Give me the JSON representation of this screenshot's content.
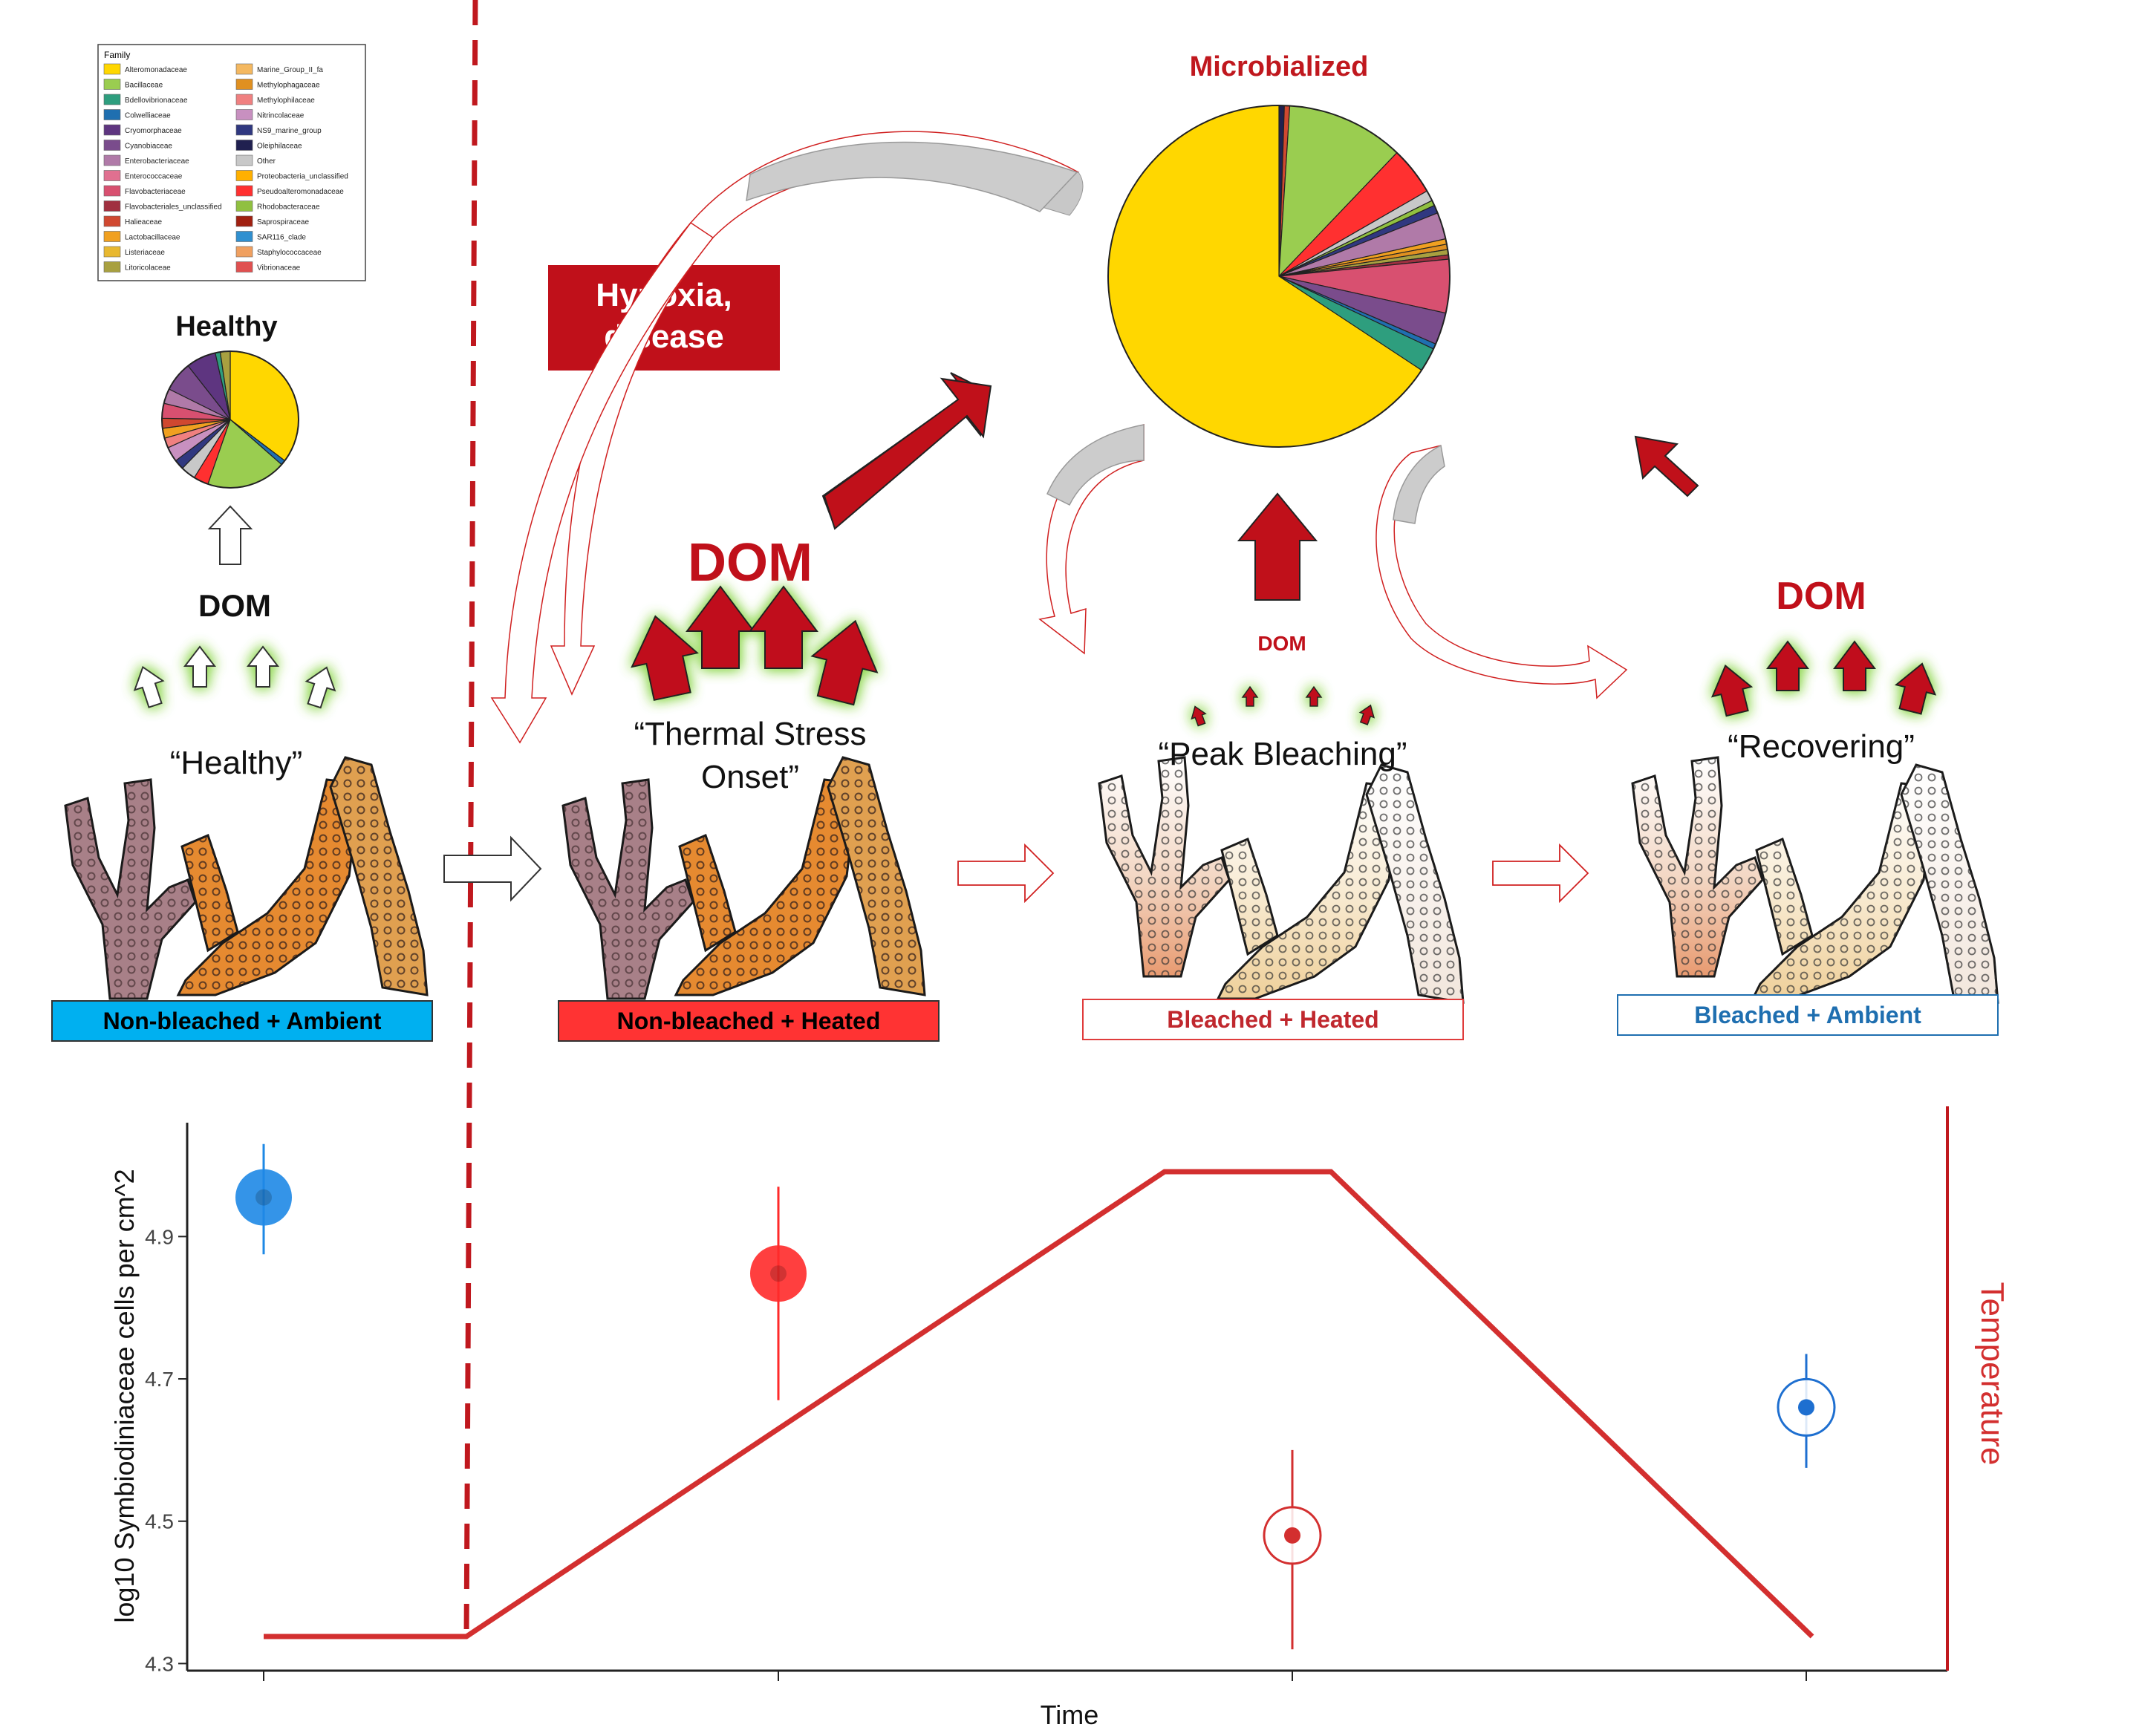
{
  "legend": {
    "title": "Family",
    "items": [
      {
        "name": "Alteromonadaceae",
        "color": "#FFD700"
      },
      {
        "name": "Bacillaceae",
        "color": "#9ACD50"
      },
      {
        "name": "Bdellovibrionaceae",
        "color": "#2E9E7E"
      },
      {
        "name": "Colwelliaceae",
        "color": "#1F6FB0"
      },
      {
        "name": "Cryomorphaceae",
        "color": "#5E3580"
      },
      {
        "name": "Cyanobiaceae",
        "color": "#7A4C8C"
      },
      {
        "name": "Enterobacteriaceae",
        "color": "#B07AA8"
      },
      {
        "name": "Enterococcaceae",
        "color": "#E07090"
      },
      {
        "name": "Flavobacteriaceae",
        "color": "#D85070"
      },
      {
        "name": "Flavobacteriales_unclassified",
        "color": "#A03040"
      },
      {
        "name": "Halieaceae",
        "color": "#D04830"
      },
      {
        "name": "Lactobacillaceae",
        "color": "#F0A020"
      },
      {
        "name": "Listeriaceae",
        "color": "#E8B830"
      },
      {
        "name": "Litoricolaceae",
        "color": "#A8A040"
      },
      {
        "name": "Marine_Group_II_fa",
        "color": "#F4B860"
      },
      {
        "name": "Methylophagaceae",
        "color": "#E09020"
      },
      {
        "name": "Methylophilaceae",
        "color": "#F08080"
      },
      {
        "name": "Nitrincolaceae",
        "color": "#C890C0"
      },
      {
        "name": "NS9_marine_group",
        "color": "#303880"
      },
      {
        "name": "Oleiphilaceae",
        "color": "#202050"
      },
      {
        "name": "Other",
        "color": "#C8C8C8"
      },
      {
        "name": "Proteobacteria_unclassified",
        "color": "#FFB000"
      },
      {
        "name": "Pseudoalteromonadaceae",
        "color": "#FF3030"
      },
      {
        "name": "Rhodobacteraceae",
        "color": "#90C040"
      },
      {
        "name": "Saprospiraceae",
        "color": "#A02010"
      },
      {
        "name": "SAR116_clade",
        "color": "#3090D0"
      },
      {
        "name": "Staphylococcaceae",
        "color": "#F0A060"
      },
      {
        "name": "Vibrionaceae",
        "color": "#E05050"
      }
    ]
  },
  "labels": {
    "healthy_pie_title": "Healthy",
    "micro_pie_title": "Microbialized",
    "hypoxia": "Hypoxia,\ndisease",
    "dom_healthy": "DOM",
    "dom_onset": "DOM",
    "dom_peak": "DOM",
    "dom_recovering": "DOM"
  },
  "stages": [
    {
      "label": "“Healthy”",
      "box": "Non-bleached + Ambient",
      "box_style": "filled",
      "box_color": "#00B0F0",
      "text_color": "#000000"
    },
    {
      "label": "“Thermal Stress\nOnset”",
      "box": "Non-bleached + Heated",
      "box_style": "filled",
      "box_color": "#FF3333",
      "text_color": "#000000"
    },
    {
      "label": "“Peak Bleaching”",
      "box": "Bleached + Heated",
      "box_style": "outline",
      "box_color": "#E03C3C",
      "text_color": "#C0282E"
    },
    {
      "label": "“Recovering”",
      "box": "Bleached + Ambient",
      "box_style": "outline",
      "box_color": "#1F6FB0",
      "text_color": "#1F6FB0"
    }
  ],
  "chart_data": {
    "type": "scatter",
    "ylabel": "log10 Symbiodiniaceae cells per cm^2",
    "xlabel": "Time",
    "y2label": "Temperature",
    "ylim": [
      4.29,
      5.06
    ],
    "yticks": [
      4.3,
      4.5,
      4.7,
      4.9
    ],
    "categories": [
      "Non-bleached + Ambient",
      "Non-bleached + Heated",
      "Bleached + Heated",
      "Bleached + Ambient"
    ],
    "points": [
      {
        "category": "Non-bleached + Ambient",
        "y": 4.955,
        "low": 4.875,
        "high": 5.03,
        "color": "#1E88E5",
        "filled": true
      },
      {
        "category": "Non-bleached + Heated",
        "y": 4.848,
        "low": 4.67,
        "high": 4.97,
        "color": "#FF2A2A",
        "filled": true
      },
      {
        "category": "Bleached + Heated",
        "y": 4.48,
        "low": 4.32,
        "high": 4.6,
        "color": "#D32F2F",
        "filled": false
      },
      {
        "category": "Bleached + Ambient",
        "y": 4.66,
        "low": 4.575,
        "high": 4.735,
        "color": "#1E6FD0",
        "filled": false
      }
    ],
    "temperature_line_color": "#D32F2F"
  }
}
